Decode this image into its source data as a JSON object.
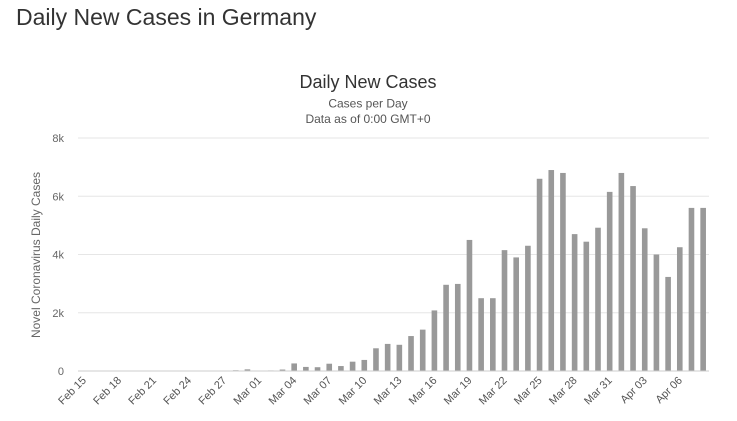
{
  "page": {
    "title": "Daily New Cases in Germany"
  },
  "chart_data": {
    "type": "bar",
    "title": "Daily New Cases",
    "subtitle_lines": [
      "Cases per Day",
      "Data as of 0:00 GMT+0"
    ],
    "xlabel": "",
    "ylabel": "Novel Coronavirus Daily Cases",
    "ylim": [
      0,
      8000
    ],
    "yticks": [
      0,
      2000,
      4000,
      6000,
      8000
    ],
    "ytick_labels": [
      "0",
      "2k",
      "4k",
      "6k",
      "8k"
    ],
    "grid": true,
    "bar_color": "#999999",
    "categories": [
      "Feb 15",
      "Feb 16",
      "Feb 17",
      "Feb 18",
      "Feb 19",
      "Feb 20",
      "Feb 21",
      "Feb 22",
      "Feb 23",
      "Feb 24",
      "Feb 25",
      "Feb 26",
      "Feb 27",
      "Feb 28",
      "Feb 29",
      "Mar 01",
      "Mar 02",
      "Mar 03",
      "Mar 04",
      "Mar 05",
      "Mar 06",
      "Mar 07",
      "Mar 08",
      "Mar 09",
      "Mar 10",
      "Mar 11",
      "Mar 12",
      "Mar 13",
      "Mar 14",
      "Mar 15",
      "Mar 16",
      "Mar 17",
      "Mar 18",
      "Mar 19",
      "Mar 20",
      "Mar 21",
      "Mar 22",
      "Mar 23",
      "Mar 24",
      "Mar 25",
      "Mar 26",
      "Mar 27",
      "Mar 28",
      "Mar 29",
      "Mar 30",
      "Mar 31",
      "Apr 01",
      "Apr 02",
      "Apr 03",
      "Apr 04",
      "Apr 05",
      "Apr 06",
      "Apr 07",
      "Apr 08"
    ],
    "xtick_labels": [
      "Feb 15",
      "Feb 18",
      "Feb 21",
      "Feb 24",
      "Feb 27",
      "Mar 01",
      "Mar 04",
      "Mar 07",
      "Mar 10",
      "Mar 13",
      "Mar 16",
      "Mar 19",
      "Mar 22",
      "Mar 25",
      "Mar 28",
      "Mar 31",
      "Apr 03",
      "Apr 06"
    ],
    "values": [
      0,
      0,
      0,
      0,
      0,
      0,
      0,
      0,
      2,
      0,
      1,
      10,
      10,
      26,
      57,
      0,
      20,
      50,
      260,
      140,
      130,
      250,
      170,
      320,
      380,
      780,
      930,
      900,
      1200,
      1420,
      2080,
      2960,
      2990,
      4500,
      2500,
      2500,
      4150,
      3900,
      4300,
      6600,
      6900,
      6800,
      4700,
      4440,
      4920,
      6150,
      6800,
      6350,
      4900,
      4000,
      3230,
      4250,
      5600,
      5600
    ]
  }
}
